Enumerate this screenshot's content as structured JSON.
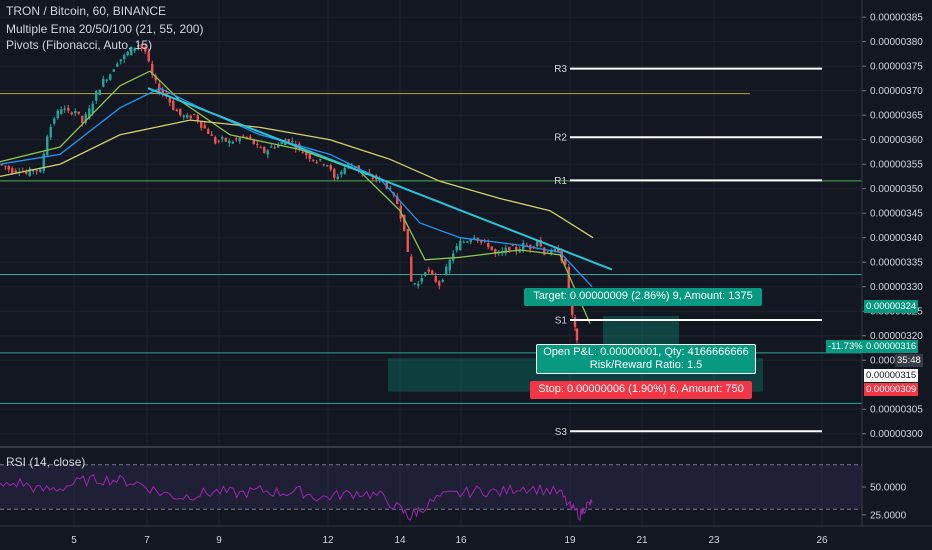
{
  "header": {
    "symbol_line": "TRON / Bitcoin, 60, BINANCE",
    "ema_line": "Multiple Ema 20/50/100 (21, 55, 200)",
    "pivots_line": "Pivots (Fibonacci, Auto, 15)",
    "rsi_line": "RSI (14, close)"
  },
  "pivots": [
    {
      "label": "R3",
      "value": 3.745e-06
    },
    {
      "label": "R2",
      "value": 3.605e-06
    },
    {
      "label": "R1",
      "value": 3.517e-06
    },
    {
      "label": "S1",
      "value": 3.232e-06
    },
    {
      "label": "S3",
      "value": 3.005e-06
    }
  ],
  "position": {
    "target_label": "Target: 0.00000009 (2.86%) 9, Amount: 1375",
    "open_label": "Open P&L: 0.00000001, Qty: 4166666666",
    "rr_label": "Risk/Reward Ratio: 1.5",
    "stop_label": "Stop: 0.00000006 (1.90%) 6, Amount: 750",
    "entry": 3.15e-06,
    "target": 3.24e-06,
    "stop": 3.09e-06
  },
  "price_tags": {
    "target": "0.00000324",
    "current": "0.00000316",
    "current_pct": "-11.73%",
    "countdown": "35:48",
    "entry": "0.00000315",
    "stop": "0.00000309"
  },
  "colors": {
    "bg": "#131722",
    "up": "#26a69a",
    "down": "#ef5350",
    "ema21": "#8bc34a",
    "ema55": "#2196f3",
    "ema200": "#d4cf6a",
    "trendline": "#26c6da",
    "rsi": "#9c27b0",
    "target_green": "#089981",
    "stop_red": "#f23645"
  },
  "chart_data": [
    {
      "type": "candlestick",
      "title": "TRON / Bitcoin, 60, BINANCE",
      "ylim": [
        2.975e-06,
        3.885e-06
      ],
      "y_ticks": [
        "0.00000385",
        "0.00000380",
        "0.00000375",
        "0.00000370",
        "0.00000365",
        "0.00000360",
        "0.00000355",
        "0.00000350",
        "0.00000345",
        "0.00000340",
        "0.00000335",
        "0.00000330",
        "0.00000325",
        "0.00000320",
        "0.00000315",
        "0.00000305",
        "0.00000300"
      ],
      "x_ticks": [
        "5",
        "7",
        "9",
        "12",
        "14",
        "16",
        "19",
        "21",
        "23",
        "26"
      ],
      "horizontal_lines": [
        {
          "value": 3.694e-06,
          "color": "#b8a635"
        },
        {
          "value": 3.516e-06,
          "color": "#4caf50"
        },
        {
          "value": 3.325e-06,
          "color": "#26a69a"
        },
        {
          "value": 3.165e-06,
          "color": "#26a69a"
        },
        {
          "value": 3.062e-06,
          "color": "#26a69a"
        }
      ],
      "close_path": [
        [
          0,
          3.55e-06
        ],
        [
          7,
          3.545e-06
        ],
        [
          14,
          3.535e-06
        ],
        [
          21,
          3.54e-06
        ],
        [
          28,
          3.53e-06
        ],
        [
          35,
          3.54e-06
        ],
        [
          42,
          3.535e-06
        ],
        [
          49,
          3.61e-06
        ],
        [
          56,
          3.645e-06
        ],
        [
          63,
          3.665e-06
        ],
        [
          70,
          3.655e-06
        ],
        [
          77,
          3.66e-06
        ],
        [
          84,
          3.635e-06
        ],
        [
          91,
          3.66e-06
        ],
        [
          98,
          3.695e-06
        ],
        [
          105,
          3.72e-06
        ],
        [
          112,
          3.735e-06
        ],
        [
          119,
          3.76e-06
        ],
        [
          126,
          3.77e-06
        ],
        [
          133,
          3.785e-06
        ],
        [
          140,
          3.795e-06
        ],
        [
          147,
          3.78e-06
        ],
        [
          154,
          3.73e-06
        ],
        [
          161,
          3.7e-06
        ],
        [
          168,
          3.69e-06
        ],
        [
          175,
          3.665e-06
        ],
        [
          182,
          3.65e-06
        ],
        [
          189,
          3.645e-06
        ],
        [
          196,
          3.65e-06
        ],
        [
          203,
          3.63e-06
        ],
        [
          210,
          3.615e-06
        ],
        [
          217,
          3.595e-06
        ],
        [
          224,
          3.6e-06
        ],
        [
          231,
          3.595e-06
        ],
        [
          238,
          3.6e-06
        ],
        [
          245,
          3.605e-06
        ],
        [
          252,
          3.6e-06
        ],
        [
          259,
          3.585e-06
        ],
        [
          266,
          3.575e-06
        ],
        [
          273,
          3.585e-06
        ],
        [
          280,
          3.59e-06
        ],
        [
          287,
          3.6e-06
        ],
        [
          294,
          3.595e-06
        ],
        [
          301,
          3.58e-06
        ],
        [
          308,
          3.57e-06
        ],
        [
          315,
          3.56e-06
        ],
        [
          322,
          3.555e-06
        ],
        [
          329,
          3.55e-06
        ],
        [
          336,
          3.52e-06
        ],
        [
          343,
          3.535e-06
        ],
        [
          350,
          3.55e-06
        ],
        [
          357,
          3.545e-06
        ],
        [
          364,
          3.53e-06
        ],
        [
          371,
          3.525e-06
        ],
        [
          378,
          3.52e-06
        ],
        [
          385,
          3.515e-06
        ],
        [
          392,
          3.495e-06
        ],
        [
          399,
          3.47e-06
        ],
        [
          406,
          3.42e-06
        ],
        [
          413,
          3.31e-06
        ],
        [
          420,
          3.305e-06
        ],
        [
          427,
          3.335e-06
        ],
        [
          434,
          3.32e-06
        ],
        [
          441,
          3.305e-06
        ],
        [
          448,
          3.335e-06
        ],
        [
          455,
          3.37e-06
        ],
        [
          462,
          3.39e-06
        ],
        [
          469,
          3.395e-06
        ],
        [
          476,
          3.405e-06
        ],
        [
          483,
          3.39e-06
        ],
        [
          490,
          3.385e-06
        ],
        [
          497,
          3.365e-06
        ],
        [
          504,
          3.37e-06
        ],
        [
          511,
          3.38e-06
        ],
        [
          518,
          3.375e-06
        ],
        [
          525,
          3.385e-06
        ],
        [
          532,
          3.38e-06
        ],
        [
          539,
          3.395e-06
        ],
        [
          546,
          3.37e-06
        ],
        [
          553,
          3.37e-06
        ],
        [
          560,
          3.375e-06
        ],
        [
          567,
          3.34e-06
        ],
        [
          574,
          3.24e-06
        ],
        [
          578,
          3.185e-06
        ],
        [
          582,
          3.155e-06
        ],
        [
          586,
          3.16e-06
        ]
      ],
      "ema_series": [
        {
          "period": 21,
          "points": [
            [
              0,
              3.555e-06
            ],
            [
              60,
              3.585e-06
            ],
            [
              120,
              3.71e-06
            ],
            [
              150,
              3.74e-06
            ],
            [
              180,
              3.68e-06
            ],
            [
              230,
              3.61e-06
            ],
            [
              300,
              3.58e-06
            ],
            [
              360,
              3.535e-06
            ],
            [
              400,
              3.455e-06
            ],
            [
              425,
              3.355e-06
            ],
            [
              460,
              3.36e-06
            ],
            [
              520,
              3.375e-06
            ],
            [
              560,
              3.365e-06
            ],
            [
              590,
              3.225e-06
            ]
          ]
        },
        {
          "period": 55,
          "points": [
            [
              0,
              3.55e-06
            ],
            [
              60,
              3.57e-06
            ],
            [
              120,
              3.665e-06
            ],
            [
              160,
              3.705e-06
            ],
            [
              200,
              3.665e-06
            ],
            [
              260,
              3.61e-06
            ],
            [
              330,
              3.57e-06
            ],
            [
              380,
              3.52e-06
            ],
            [
              420,
              3.43e-06
            ],
            [
              460,
              3.4e-06
            ],
            [
              520,
              3.385e-06
            ],
            [
              560,
              3.37e-06
            ],
            [
              592,
              3.3e-06
            ]
          ]
        },
        {
          "period": 200,
          "points": [
            [
              0,
              3.525e-06
            ],
            [
              60,
              3.55e-06
            ],
            [
              120,
              3.61e-06
            ],
            [
              190,
              3.64e-06
            ],
            [
              260,
              3.625e-06
            ],
            [
              330,
              3.6e-06
            ],
            [
              390,
              3.56e-06
            ],
            [
              440,
              3.515e-06
            ],
            [
              500,
              3.48e-06
            ],
            [
              550,
              3.455e-06
            ],
            [
              593,
              3.4e-06
            ]
          ]
        }
      ],
      "trendline": [
        [
          148,
          3.705e-06
        ],
        [
          612,
          3.335e-06
        ]
      ]
    },
    {
      "type": "line",
      "title": "RSI (14, close)",
      "ylim": [
        15,
        85
      ],
      "y_ticks": [
        "50.0000",
        "25.0000"
      ],
      "bands": [
        70,
        30
      ],
      "points": [
        [
          0,
          50
        ],
        [
          20,
          54
        ],
        [
          40,
          47
        ],
        [
          60,
          49
        ],
        [
          80,
          55
        ],
        [
          100,
          57
        ],
        [
          120,
          56
        ],
        [
          140,
          53
        ],
        [
          160,
          45
        ],
        [
          180,
          41
        ],
        [
          200,
          44
        ],
        [
          220,
          46
        ],
        [
          240,
          44
        ],
        [
          260,
          47
        ],
        [
          280,
          45
        ],
        [
          300,
          46
        ],
        [
          320,
          40
        ],
        [
          340,
          43
        ],
        [
          360,
          45
        ],
        [
          380,
          42
        ],
        [
          400,
          30
        ],
        [
          410,
          23
        ],
        [
          420,
          30
        ],
        [
          440,
          41
        ],
        [
          460,
          44
        ],
        [
          480,
          47
        ],
        [
          500,
          45
        ],
        [
          520,
          50
        ],
        [
          540,
          48
        ],
        [
          560,
          45
        ],
        [
          570,
          32
        ],
        [
          580,
          25
        ],
        [
          586,
          33
        ],
        [
          592,
          36
        ]
      ]
    }
  ]
}
